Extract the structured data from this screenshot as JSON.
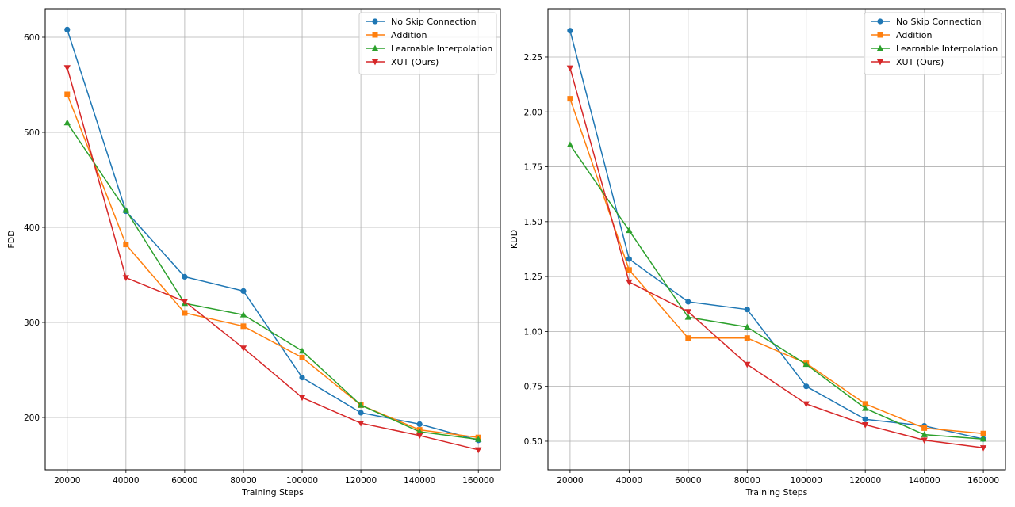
{
  "chart_data": [
    {
      "type": "line",
      "title": "",
      "xlabel": "Training Steps",
      "ylabel": "FDD",
      "x": [
        20000,
        40000,
        60000,
        80000,
        100000,
        120000,
        140000,
        160000
      ],
      "xticks": [
        20000,
        40000,
        60000,
        80000,
        100000,
        120000,
        140000,
        160000
      ],
      "xlim": [
        12500,
        167500
      ],
      "yticks": [
        200,
        300,
        400,
        500,
        600
      ],
      "ylim": [
        145,
        630
      ],
      "grid": true,
      "legend_position": "top-right",
      "series": [
        {
          "name": "No Skip Connection",
          "color": "#1f77b4",
          "marker": "circle",
          "values": [
            608,
            417,
            348,
            333,
            242,
            205,
            193,
            176
          ]
        },
        {
          "name": "Addition",
          "color": "#ff7f0e",
          "marker": "square",
          "values": [
            540,
            382,
            310,
            296,
            263,
            213,
            187,
            179
          ]
        },
        {
          "name": "Learnable Interpolation",
          "color": "#2ca02c",
          "marker": "triangle-up",
          "values": [
            510,
            418,
            320,
            308,
            270,
            213,
            185,
            177
          ]
        },
        {
          "name": "XUT (Ours)",
          "color": "#d62728",
          "marker": "triangle-down",
          "values": [
            568,
            347,
            322,
            273,
            221,
            194,
            181,
            166
          ]
        }
      ]
    },
    {
      "type": "line",
      "title": "",
      "xlabel": "Training Steps",
      "ylabel": "KDD",
      "x": [
        20000,
        40000,
        60000,
        80000,
        100000,
        120000,
        140000,
        160000
      ],
      "xticks": [
        20000,
        40000,
        60000,
        80000,
        100000,
        120000,
        140000,
        160000
      ],
      "xlim": [
        12500,
        167500
      ],
      "yticks": [
        0.5,
        0.75,
        1.0,
        1.25,
        1.5,
        1.75,
        2.0,
        2.25
      ],
      "ytick_labels": [
        "0.50",
        "0.75",
        "1.00",
        "1.25",
        "1.50",
        "1.75",
        "2.00",
        "2.25"
      ],
      "ylim": [
        0.37,
        2.47
      ],
      "grid": true,
      "legend_position": "top-right",
      "series": [
        {
          "name": "No Skip Connection",
          "color": "#1f77b4",
          "marker": "circle",
          "values": [
            2.37,
            1.33,
            1.135,
            1.1,
            0.75,
            0.6,
            0.57,
            0.51
          ]
        },
        {
          "name": "Addition",
          "color": "#ff7f0e",
          "marker": "square",
          "values": [
            2.06,
            1.28,
            0.97,
            0.97,
            0.855,
            0.67,
            0.56,
            0.535
          ]
        },
        {
          "name": "Learnable Interpolation",
          "color": "#2ca02c",
          "marker": "triangle-up",
          "values": [
            1.85,
            1.46,
            1.065,
            1.02,
            0.85,
            0.65,
            0.53,
            0.51
          ]
        },
        {
          "name": "XUT (Ours)",
          "color": "#d62728",
          "marker": "triangle-down",
          "values": [
            2.2,
            1.225,
            1.09,
            0.85,
            0.67,
            0.575,
            0.505,
            0.47
          ]
        }
      ]
    }
  ]
}
